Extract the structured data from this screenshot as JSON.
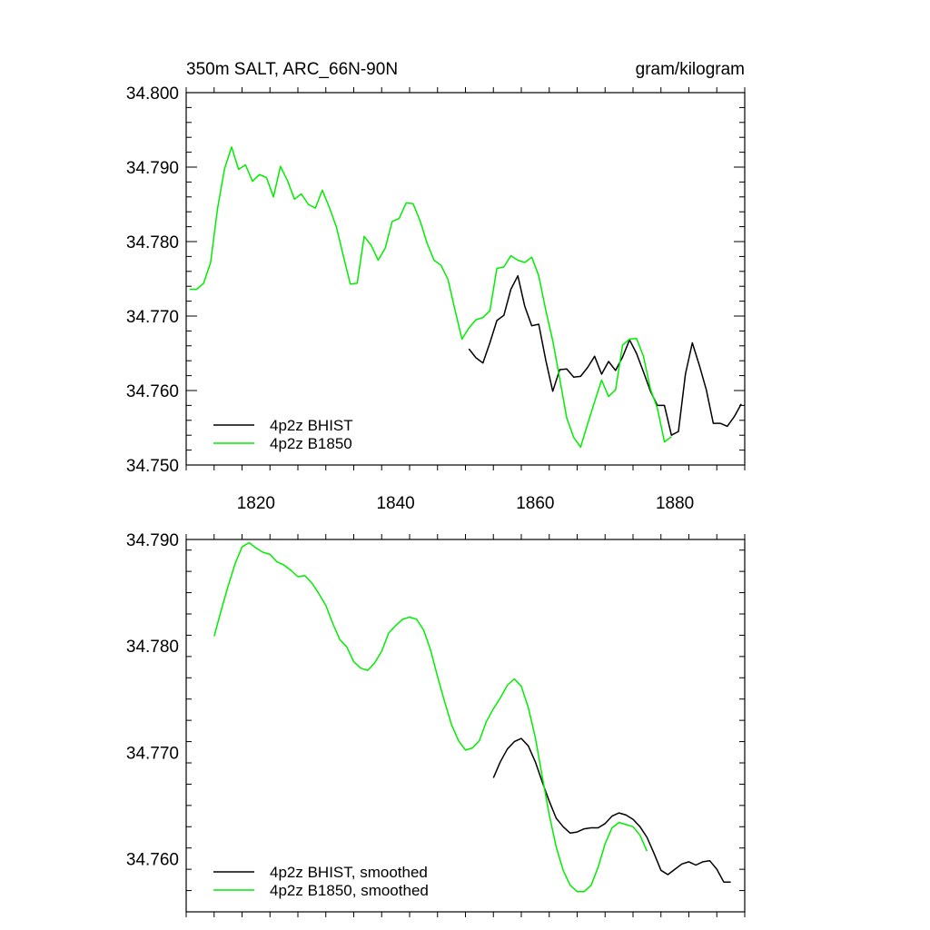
{
  "top_left_title": "350m SALT, ARC_66N-90N",
  "top_right_title": "gram/kilogram",
  "colors": {
    "bhist": "#000000",
    "b1850": "#00ee00",
    "axis": "#000000",
    "background": "#ffffff"
  },
  "chart_data": [
    {
      "type": "line",
      "title": "350m SALT, ARC_66N-90N",
      "units": "gram/kilogram",
      "xlim": [
        1810,
        1890
      ],
      "ylim": [
        34.75,
        34.8
      ],
      "xticks": [
        1820,
        1840,
        1860,
        1880
      ],
      "xtick_labels": [
        "1820",
        "1840",
        "1860",
        "1880"
      ],
      "yticks": [
        34.75,
        34.76,
        34.77,
        34.78,
        34.79,
        34.8
      ],
      "ytick_labels": [
        "34.750",
        "34.760",
        "34.770",
        "34.780",
        "34.790",
        "34.800"
      ],
      "legend_position": "bottom-left",
      "series": [
        {
          "name": "4p2z BHIST",
          "color": "#000000",
          "x": [
            1850.5,
            1851.5,
            1852.5,
            1853.5,
            1854.5,
            1855.5,
            1856.5,
            1857.5,
            1858.5,
            1859.5,
            1860.5,
            1861.5,
            1862.5,
            1863.5,
            1864.5,
            1865.5,
            1866.5,
            1867.5,
            1868.5,
            1869.5,
            1870.5,
            1871.5,
            1872.5,
            1873.5,
            1874.5,
            1875.5,
            1876.5,
            1877.5,
            1878.5,
            1879.5,
            1880.5,
            1881.5,
            1882.5,
            1883.5,
            1884.5,
            1885.5,
            1886.5,
            1887.5,
            1888.5,
            1889.5
          ],
          "y": [
            34.7656,
            34.7644,
            34.7637,
            34.7664,
            34.7694,
            34.7701,
            34.7736,
            34.7754,
            34.7713,
            34.7687,
            34.7689,
            34.7641,
            34.7599,
            34.7628,
            34.7629,
            34.7618,
            34.7619,
            34.7631,
            34.7646,
            34.7622,
            34.7639,
            34.7627,
            34.7645,
            34.7668,
            34.765,
            34.7625,
            34.7599,
            34.758,
            34.758,
            34.754,
            34.7545,
            34.7622,
            34.7664,
            34.7634,
            34.7601,
            34.7556,
            34.7556,
            34.7552,
            34.7565,
            34.7582
          ]
        },
        {
          "name": "4p2z B1850",
          "color": "#00ee00",
          "x": [
            1810.5,
            1811.5,
            1812.5,
            1813.5,
            1814.5,
            1815.5,
            1816.5,
            1817.5,
            1818.5,
            1819.5,
            1820.5,
            1821.5,
            1822.5,
            1823.5,
            1824.5,
            1825.5,
            1826.5,
            1827.5,
            1828.5,
            1829.5,
            1830.5,
            1831.5,
            1832.5,
            1833.5,
            1834.5,
            1835.5,
            1836.5,
            1837.5,
            1838.5,
            1839.5,
            1840.5,
            1841.5,
            1842.5,
            1843.5,
            1844.5,
            1845.5,
            1846.5,
            1847.5,
            1848.5,
            1849.5,
            1850.5,
            1851.5,
            1852.5,
            1853.5,
            1854.5,
            1855.5,
            1856.5,
            1857.5,
            1858.5,
            1859.5,
            1860.5,
            1861.5,
            1862.5,
            1863.5,
            1864.5,
            1865.5,
            1866.5,
            1867.5,
            1868.5,
            1869.5,
            1870.5,
            1871.5,
            1872.5,
            1873.5,
            1874.5,
            1875.5,
            1876.5,
            1877.5,
            1878.5,
            1879.5
          ],
          "y": [
            34.7736,
            34.7736,
            34.7744,
            34.7772,
            34.7845,
            34.7898,
            34.7927,
            34.7897,
            34.7903,
            34.7881,
            34.789,
            34.7886,
            34.786,
            34.7901,
            34.7882,
            34.7857,
            34.7864,
            34.785,
            34.7845,
            34.7869,
            34.7846,
            34.782,
            34.7781,
            34.7743,
            34.7744,
            34.7807,
            34.7795,
            34.7775,
            34.7791,
            34.7827,
            34.7831,
            34.7852,
            34.7851,
            34.7828,
            34.7798,
            34.7775,
            34.7768,
            34.7749,
            34.7708,
            34.7669,
            34.7684,
            34.7695,
            34.7698,
            34.7707,
            34.7764,
            34.7766,
            34.7781,
            34.7775,
            34.7772,
            34.7779,
            34.7754,
            34.7708,
            34.7667,
            34.7616,
            34.7563,
            34.7537,
            34.7524,
            34.7555,
            34.7585,
            34.7614,
            34.7592,
            34.7601,
            34.7661,
            34.7669,
            34.767,
            34.7646,
            34.7602,
            34.7576,
            34.7531,
            34.7538
          ]
        }
      ]
    },
    {
      "type": "line",
      "xlim": [
        1810,
        1890
      ],
      "ylim": [
        34.755,
        34.79
      ],
      "xticks": [
        1820,
        1840,
        1860,
        1880
      ],
      "xtick_labels": [],
      "yticks": [
        34.76,
        34.77,
        34.78,
        34.79
      ],
      "ytick_labels": [
        "34.760",
        "34.770",
        "34.780",
        "34.790"
      ],
      "legend_position": "bottom-left",
      "series": [
        {
          "name": "4p2z BHIST, smoothed",
          "color": "#000000",
          "x": [
            1854.0,
            1855.0,
            1856.0,
            1857.0,
            1858.0,
            1859.0,
            1860.0,
            1861.0,
            1862.0,
            1863.0,
            1864.0,
            1865.0,
            1866.0,
            1867.0,
            1868.0,
            1869.0,
            1870.0,
            1871.0,
            1872.0,
            1873.0,
            1874.0,
            1875.0,
            1876.0,
            1877.0,
            1878.0,
            1879.0,
            1880.0,
            1881.0,
            1882.0,
            1883.0,
            1884.0,
            1885.0,
            1886.0,
            1887.0,
            1888.0
          ],
          "y": [
            34.7676,
            34.7691,
            34.7703,
            34.771,
            34.7713,
            34.7706,
            34.7691,
            34.7672,
            34.7654,
            34.7638,
            34.763,
            34.7624,
            34.7625,
            34.7628,
            34.7629,
            34.7629,
            34.7633,
            34.764,
            34.7643,
            34.7641,
            34.7637,
            34.763,
            34.762,
            34.7605,
            34.7589,
            34.7585,
            34.759,
            34.7595,
            34.7597,
            34.7594,
            34.7597,
            34.7598,
            34.759,
            34.7578,
            34.7578
          ]
        },
        {
          "name": "4p2z B1850, smoothed",
          "color": "#00ee00",
          "x": [
            1814.0,
            1815.0,
            1816.0,
            1817.0,
            1818.0,
            1819.0,
            1820.0,
            1821.0,
            1822.0,
            1823.0,
            1824.0,
            1825.0,
            1826.0,
            1827.0,
            1828.0,
            1829.0,
            1830.0,
            1831.0,
            1832.0,
            1833.0,
            1834.0,
            1835.0,
            1836.0,
            1837.0,
            1838.0,
            1839.0,
            1840.0,
            1841.0,
            1842.0,
            1843.0,
            1844.0,
            1845.0,
            1846.0,
            1847.0,
            1848.0,
            1849.0,
            1850.0,
            1851.0,
            1852.0,
            1853.0,
            1854.0,
            1855.0,
            1856.0,
            1857.0,
            1858.0,
            1859.0,
            1860.0,
            1861.0,
            1862.0,
            1863.0,
            1864.0,
            1865.0,
            1866.0,
            1867.0,
            1868.0,
            1869.0,
            1870.0,
            1871.0,
            1872.0,
            1873.0,
            1874.0,
            1875.0,
            1876.0
          ],
          "y": [
            34.7809,
            34.7833,
            34.7856,
            34.7877,
            34.7893,
            34.7897,
            34.7892,
            34.7888,
            34.7886,
            34.7879,
            34.7876,
            34.7871,
            34.7865,
            34.7866,
            34.7859,
            34.7849,
            34.7838,
            34.7821,
            34.7806,
            34.7799,
            34.7785,
            34.7779,
            34.7777,
            34.7784,
            34.7795,
            34.7812,
            34.7819,
            34.7825,
            34.7827,
            34.7825,
            34.7815,
            34.7796,
            34.7771,
            34.7748,
            34.7726,
            34.7711,
            34.7702,
            34.7704,
            34.7711,
            34.7729,
            34.7741,
            34.7751,
            34.7763,
            34.7769,
            34.7762,
            34.7742,
            34.7714,
            34.7677,
            34.7641,
            34.7611,
            34.7589,
            34.7575,
            34.7569,
            34.7569,
            34.7575,
            34.7592,
            34.7614,
            34.7629,
            34.7634,
            34.7632,
            34.763,
            34.7622,
            34.7607
          ]
        }
      ]
    }
  ]
}
